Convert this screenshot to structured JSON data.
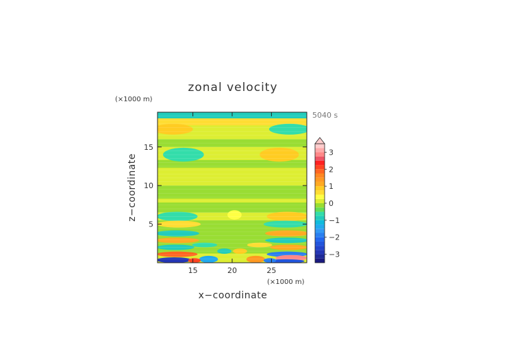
{
  "chart_data": {
    "type": "heatmap",
    "title": "zonal velocity",
    "xlabel": "x−coordinate",
    "ylabel": "z−coordinate",
    "x_unit": "(×1000 m)",
    "y_unit": "(×1000 m)",
    "time_label": "5040 s",
    "xlim": [
      10.5,
      29.5
    ],
    "ylim": [
      0,
      19.5
    ],
    "x_ticks": [
      15,
      20,
      25
    ],
    "y_ticks": [
      5,
      10,
      15
    ],
    "colorbar": {
      "ticks": [
        3,
        2,
        1,
        0,
        -1,
        -2,
        -3
      ],
      "range": [
        -3.5,
        3.5
      ],
      "levels": [
        {
          "from": -3.5,
          "to": -3.25,
          "color": "#1a1a80"
        },
        {
          "from": -3.25,
          "to": -3.0,
          "color": "#1f2a99"
        },
        {
          "from": -3.0,
          "to": -2.75,
          "color": "#2436b5"
        },
        {
          "from": -2.75,
          "to": -2.5,
          "color": "#2244cc"
        },
        {
          "from": -2.5,
          "to": -2.25,
          "color": "#2255dd"
        },
        {
          "from": -2.25,
          "to": -2.0,
          "color": "#2266ee"
        },
        {
          "from": -2.0,
          "to": -1.75,
          "color": "#2a7ff0"
        },
        {
          "from": -1.75,
          "to": -1.5,
          "color": "#3399f5"
        },
        {
          "from": -1.5,
          "to": -1.25,
          "color": "#22aaee"
        },
        {
          "from": -1.25,
          "to": -1.0,
          "color": "#11bbdd"
        },
        {
          "from": -1.0,
          "to": -0.75,
          "color": "#22ccbb"
        },
        {
          "from": -0.75,
          "to": -0.5,
          "color": "#33ddaa"
        },
        {
          "from": -0.5,
          "to": -0.25,
          "color": "#66dd55"
        },
        {
          "from": -0.25,
          "to": 0.0,
          "color": "#99dd33"
        },
        {
          "from": 0.0,
          "to": 0.25,
          "color": "#ddee33"
        },
        {
          "from": 0.25,
          "to": 0.5,
          "color": "#ffff44"
        },
        {
          "from": 0.5,
          "to": 0.75,
          "color": "#ffdd33"
        },
        {
          "from": 0.75,
          "to": 1.0,
          "color": "#ffcc22"
        },
        {
          "from": 1.0,
          "to": 1.25,
          "color": "#ffaa22"
        },
        {
          "from": 1.25,
          "to": 1.5,
          "color": "#ff9922"
        },
        {
          "from": 1.5,
          "to": 1.75,
          "color": "#ff8822"
        },
        {
          "from": 1.75,
          "to": 2.0,
          "color": "#ff6622"
        },
        {
          "from": 2.0,
          "to": 2.25,
          "color": "#ff4422"
        },
        {
          "from": 2.25,
          "to": 2.5,
          "color": "#ff2222"
        },
        {
          "from": 2.5,
          "to": 2.75,
          "color": "#ee5566"
        },
        {
          "from": 2.75,
          "to": 3.0,
          "color": "#ff8888"
        },
        {
          "from": 3.0,
          "to": 3.25,
          "color": "#ffaaaa"
        },
        {
          "from": 3.25,
          "to": 3.5,
          "color": "#ffcccc"
        }
      ],
      "extends_above": true
    },
    "background_value": 0.2,
    "bands": [
      {
        "x": [
          10.5,
          29.5
        ],
        "z": [
          18.7,
          19.5
        ],
        "value": -0.8
      },
      {
        "x": [
          10.5,
          29.5
        ],
        "z": [
          17.8,
          18.7
        ],
        "value": 0.6
      },
      {
        "x": [
          10.5,
          29.5
        ],
        "z": [
          15.0,
          16.0
        ],
        "value": -0.1
      },
      {
        "x": [
          10.5,
          20.0
        ],
        "z": [
          12.3,
          13.3
        ],
        "value": -0.1
      },
      {
        "x": [
          20.0,
          29.5
        ],
        "z": [
          12.3,
          13.3
        ],
        "value": -0.1
      },
      {
        "x": [
          10.5,
          29.5
        ],
        "z": [
          8.3,
          10.0
        ],
        "value": -0.1
      },
      {
        "x": [
          10.5,
          29.5
        ],
        "z": [
          6.5,
          7.8
        ],
        "value": -0.1
      },
      {
        "x": [
          10.5,
          29.5
        ],
        "z": [
          1.2,
          5.5
        ],
        "value": -0.1
      }
    ],
    "blobs": [
      {
        "cx": 12.5,
        "cz": 17.3,
        "rx": 2.5,
        "rz": 0.7,
        "value": 0.8
      },
      {
        "cx": 27.3,
        "cz": 17.3,
        "rx": 2.6,
        "rz": 0.7,
        "value": -0.6
      },
      {
        "cx": 13.8,
        "cz": 14.0,
        "rx": 2.6,
        "rz": 0.9,
        "value": -0.7
      },
      {
        "cx": 26.0,
        "cz": 14.0,
        "rx": 2.5,
        "rz": 0.9,
        "value": 0.8
      },
      {
        "cx": 13.0,
        "cz": 6.0,
        "rx": 2.6,
        "rz": 0.6,
        "value": -0.7
      },
      {
        "cx": 27.0,
        "cz": 6.0,
        "rx": 2.6,
        "rz": 0.6,
        "value": 0.8
      },
      {
        "cx": 20.3,
        "cz": 6.2,
        "rx": 0.9,
        "rz": 0.6,
        "value": 0.4
      },
      {
        "cx": 13.2,
        "cz": 5.0,
        "rx": 2.8,
        "rz": 0.45,
        "value": 0.6
      },
      {
        "cx": 26.8,
        "cz": 5.0,
        "rx": 2.8,
        "rz": 0.45,
        "value": -0.6
      },
      {
        "cx": 13.0,
        "cz": 3.8,
        "rx": 2.8,
        "rz": 0.4,
        "value": -1.0
      },
      {
        "cx": 27.0,
        "cz": 3.8,
        "rx": 2.8,
        "rz": 0.4,
        "value": 1.0
      },
      {
        "cx": 13.0,
        "cz": 2.9,
        "rx": 2.8,
        "rz": 0.35,
        "value": 1.0
      },
      {
        "cx": 27.0,
        "cz": 2.9,
        "rx": 2.8,
        "rz": 0.35,
        "value": -1.0
      },
      {
        "cx": 16.5,
        "cz": 2.3,
        "rx": 1.6,
        "rz": 0.3,
        "value": -0.6
      },
      {
        "cx": 23.5,
        "cz": 2.3,
        "rx": 1.6,
        "rz": 0.3,
        "value": 0.6
      },
      {
        "cx": 12.8,
        "cz": 2.0,
        "rx": 2.4,
        "rz": 0.35,
        "value": -1.0
      },
      {
        "cx": 27.2,
        "cz": 2.0,
        "rx": 2.4,
        "rz": 0.35,
        "value": 1.0
      },
      {
        "cx": 13.0,
        "cz": 1.1,
        "rx": 2.6,
        "rz": 0.35,
        "value": 1.8
      },
      {
        "cx": 27.0,
        "cz": 1.1,
        "rx": 2.6,
        "rz": 0.35,
        "value": -1.8
      },
      {
        "cx": 12.6,
        "cz": 0.35,
        "rx": 2.3,
        "rz": 0.35,
        "value": -3.0
      },
      {
        "cx": 27.5,
        "cz": 0.6,
        "rx": 2.0,
        "rz": 0.4,
        "value": 2.9
      },
      {
        "cx": 26.8,
        "cz": 0.2,
        "rx": 2.4,
        "rz": 0.25,
        "value": -2.4
      },
      {
        "cx": 17.0,
        "cz": 0.45,
        "rx": 1.2,
        "rz": 0.45,
        "value": -1.4
      },
      {
        "cx": 23.0,
        "cz": 0.45,
        "rx": 1.2,
        "rz": 0.45,
        "value": 1.4
      },
      {
        "cx": 15.2,
        "cz": 0.3,
        "rx": 0.8,
        "rz": 0.3,
        "value": 2.0
      },
      {
        "cx": 24.8,
        "cz": 0.3,
        "rx": 0.8,
        "rz": 0.3,
        "value": -2.0
      },
      {
        "cx": 19.0,
        "cz": 1.5,
        "rx": 0.9,
        "rz": 0.35,
        "value": -0.9
      },
      {
        "cx": 21.0,
        "cz": 1.5,
        "rx": 0.9,
        "rz": 0.35,
        "value": 0.9
      }
    ]
  }
}
